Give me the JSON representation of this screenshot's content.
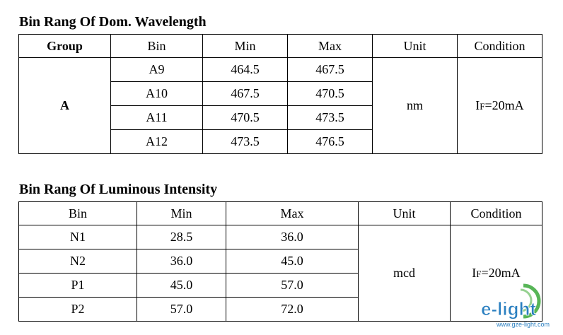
{
  "wavelength": {
    "title": "Bin Rang Of Dom. Wavelength",
    "headers": [
      "Group",
      "Bin",
      "Min",
      "Max",
      "Unit",
      "Condition"
    ],
    "group": "A",
    "unit": "nm",
    "condition_prefix": "I",
    "condition_sub": "F",
    "condition_value": "=20mA",
    "rows": [
      {
        "bin": "A9",
        "min": "464.5",
        "max": "467.5"
      },
      {
        "bin": "A10",
        "min": "467.5",
        "max": "470.5"
      },
      {
        "bin": "A11",
        "min": "470.5",
        "max": "473.5"
      },
      {
        "bin": "A12",
        "min": "473.5",
        "max": "476.5"
      }
    ]
  },
  "luminous": {
    "title": "Bin Rang Of Luminous Intensity",
    "headers": [
      "Bin",
      "Min",
      "Max",
      "Unit",
      "Condition"
    ],
    "unit": "mcd",
    "condition_prefix": "I",
    "condition_sub": "F",
    "condition_value": "=20mA",
    "rows": [
      {
        "bin": "N1",
        "min": "28.5",
        "max": "36.0"
      },
      {
        "bin": "N2",
        "min": "36.0",
        "max": "45.0"
      },
      {
        "bin": "P1",
        "min": "45.0",
        "max": "57.0"
      },
      {
        "bin": "P2",
        "min": "57.0",
        "max": "72.0"
      }
    ]
  },
  "logo": {
    "brand": "e-light",
    "site": "www.gze-light.com",
    "color": "#2a7fc0",
    "accent": "#3aa83a"
  }
}
